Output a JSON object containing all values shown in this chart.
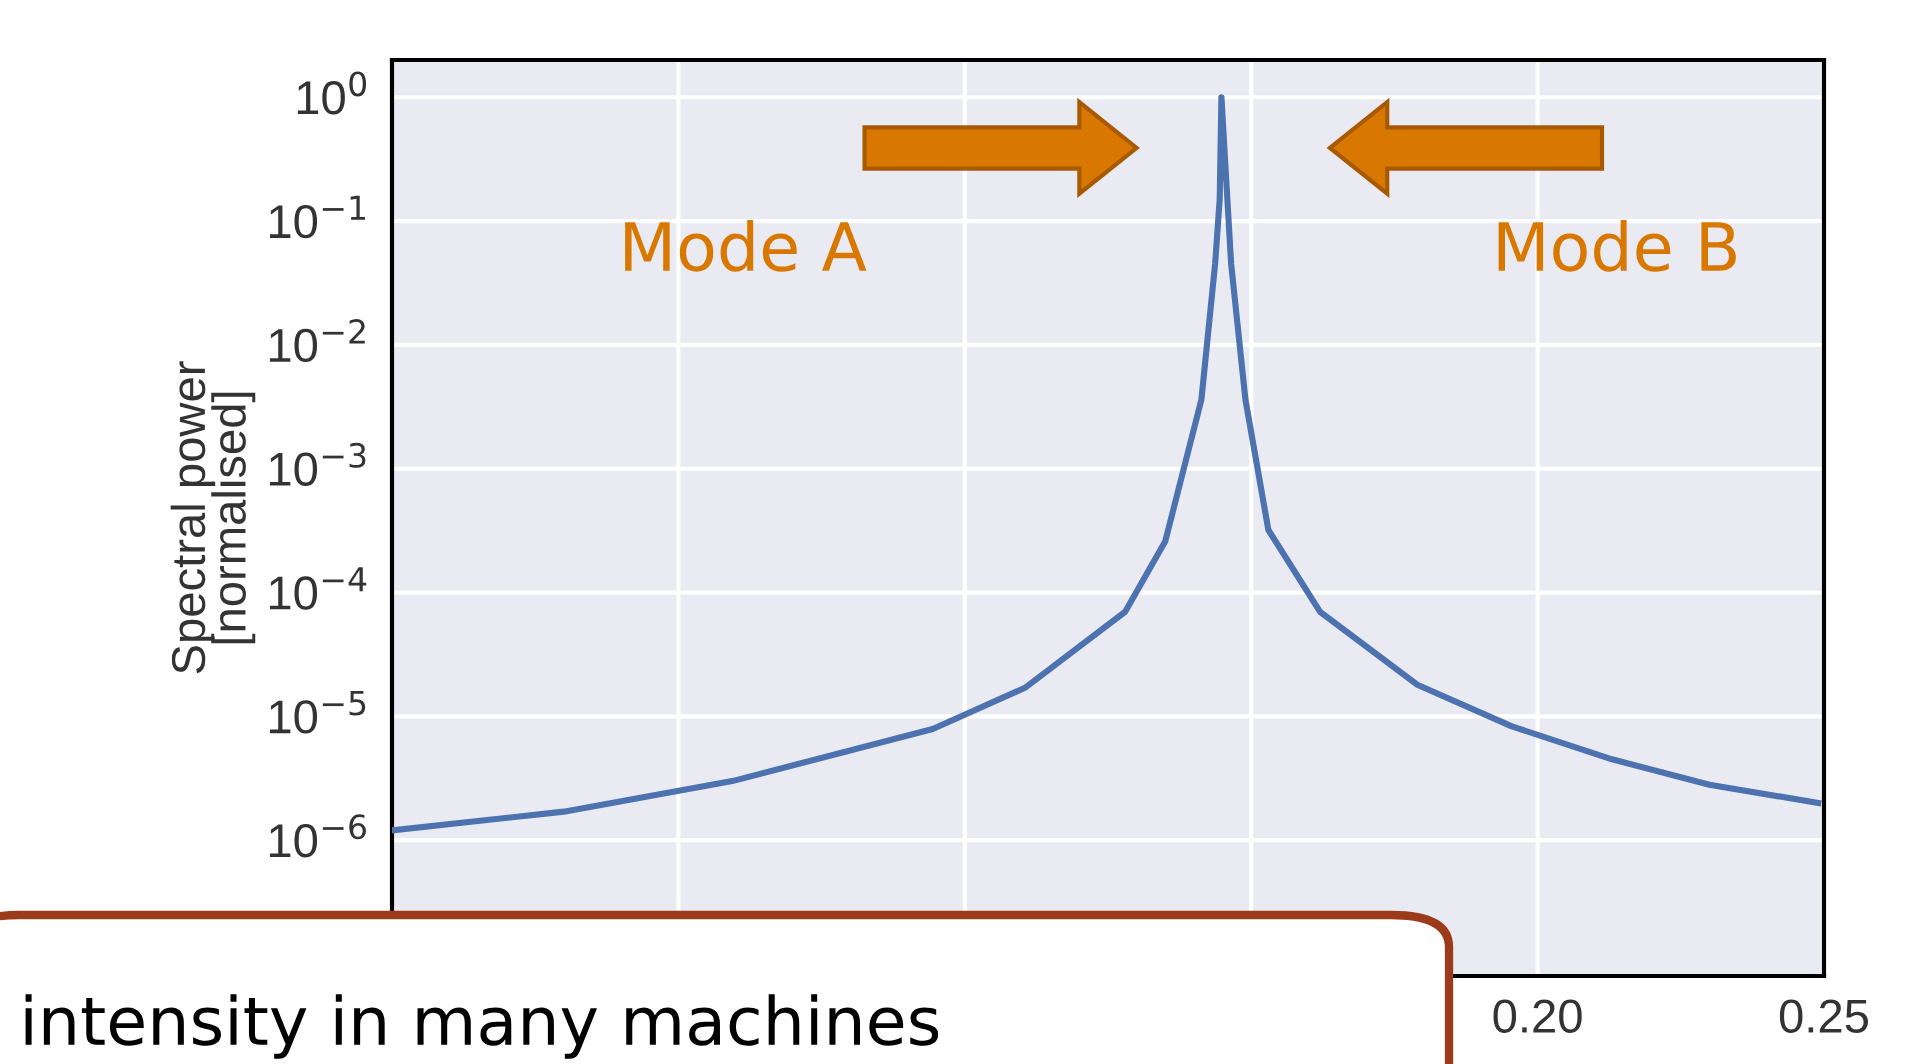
{
  "chart_data": {
    "type": "line",
    "ylabel": "Spectral power\n[normalised]",
    "x": [
      0,
      0.03,
      0.0594,
      0.0944,
      0.1105,
      0.128,
      0.135,
      0.1413,
      0.1437,
      0.1445,
      0.1448,
      0.1465,
      0.149,
      0.153,
      0.162,
      0.179,
      0.1955,
      0.213,
      0.23,
      0.249
    ],
    "series": [
      {
        "color": "#4c72b0",
        "values": [
          1.2e-06,
          1.7e-06,
          3e-06,
          7.9e-06,
          1.7e-05,
          7e-05,
          0.00026,
          0.0036,
          0.045,
          0.15,
          1.0,
          0.045,
          0.0036,
          0.00032,
          7e-05,
          1.8e-05,
          8.3e-06,
          4.5e-06,
          2.8e-06,
          2e-06
        ]
      }
    ],
    "log": "y",
    "xlim": [
      0,
      0.25
    ],
    "ylim": [
      8e-08,
      2.0
    ],
    "xticks": [
      {
        "value": 0,
        "label": null
      },
      {
        "value": 0.05,
        "label": null
      },
      {
        "value": 0.1,
        "label": null
      },
      {
        "value": 0.15,
        "label": null
      },
      {
        "value": 0.2,
        "label": "0.20"
      },
      {
        "value": 0.25,
        "label": "0.25"
      }
    ],
    "yticks": [
      {
        "value": 1,
        "label": "10$^{0}$"
      },
      {
        "value": 0.1,
        "label": "10$^{−1}$"
      },
      {
        "value": 0.01,
        "label": "10$^{−2}$"
      },
      {
        "value": 0.001,
        "label": "10$^{−3}$"
      },
      {
        "value": 0.0001,
        "label": "10$^{−4}$"
      },
      {
        "value": 1e-05,
        "label": "10$^{−5}$"
      },
      {
        "value": 1e-06,
        "label": "10$^{−6}$"
      }
    ],
    "grid": true,
    "marker": "none",
    "line_style": "solid",
    "legend": false,
    "annotations": [
      "Mode A",
      "Mode B",
      "intensity in many machines"
    ]
  }
}
